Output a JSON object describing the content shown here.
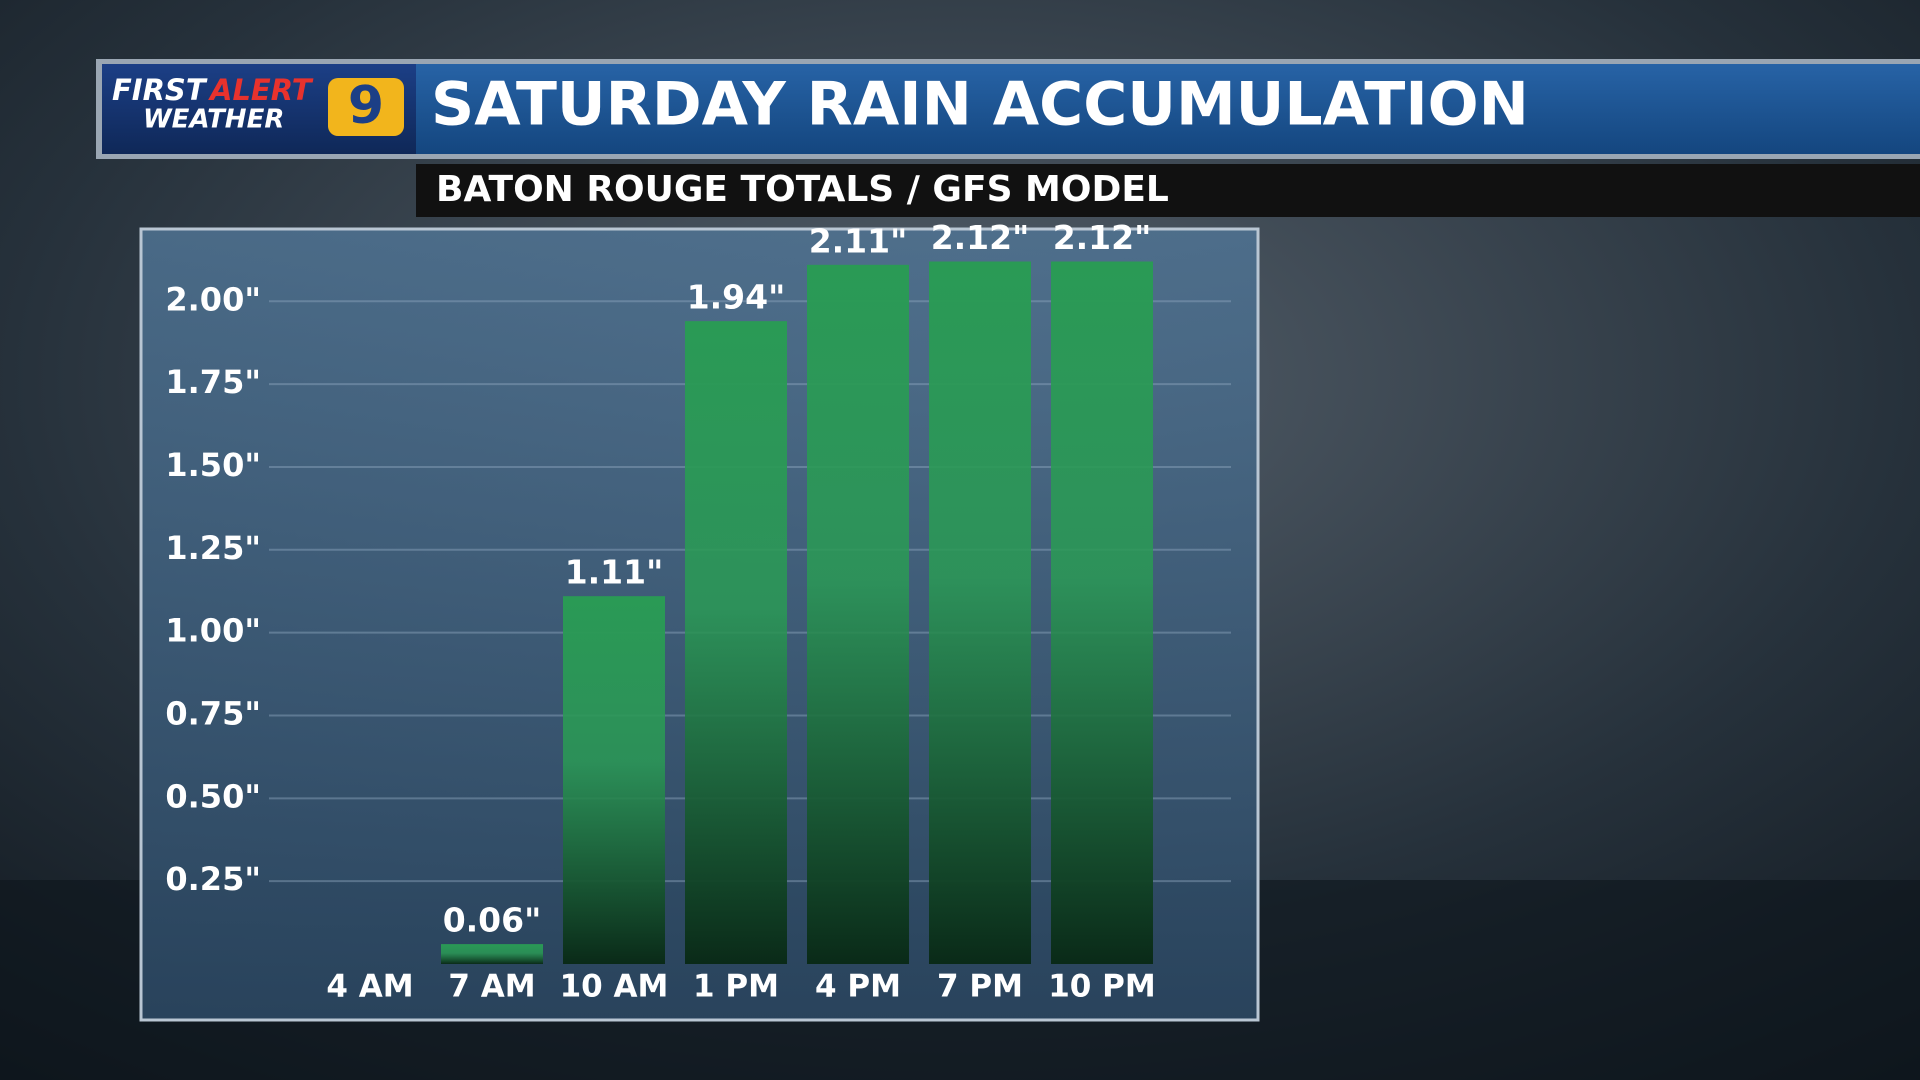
{
  "branding": {
    "logo_first": "FIRST",
    "logo_alert": "ALERT",
    "logo_weather": "WEATHER",
    "logo_number": "9"
  },
  "chart_data": {
    "type": "bar",
    "title": "SATURDAY RAIN ACCUMULATION",
    "subtitle": "BATON ROUGE TOTALS / GFS MODEL",
    "categories": [
      "4 AM",
      "7 AM",
      "10 AM",
      "1 PM",
      "4 PM",
      "7 PM",
      "10 PM"
    ],
    "values": [
      0,
      0.06,
      1.11,
      1.94,
      2.11,
      2.12,
      2.12
    ],
    "value_labels": [
      null,
      "0.06\"",
      "1.11\"",
      "1.94\"",
      "2.11\"",
      "2.12\"",
      "2.12\""
    ],
    "color": "#2a9a55",
    "ylim": [
      0,
      2.2
    ],
    "yticks": [
      {
        "value": 0.25,
        "label": "0.25\""
      },
      {
        "value": 0.5,
        "label": "0.50\""
      },
      {
        "value": 0.75,
        "label": "0.75\""
      },
      {
        "value": 1,
        "label": "1.00\""
      },
      {
        "value": 1.25,
        "label": "1.25\""
      },
      {
        "value": 1.5,
        "label": "1.50\""
      },
      {
        "value": 1.75,
        "label": "1.75\""
      },
      {
        "value": 2,
        "label": "2.00\""
      }
    ],
    "grid": true
  }
}
